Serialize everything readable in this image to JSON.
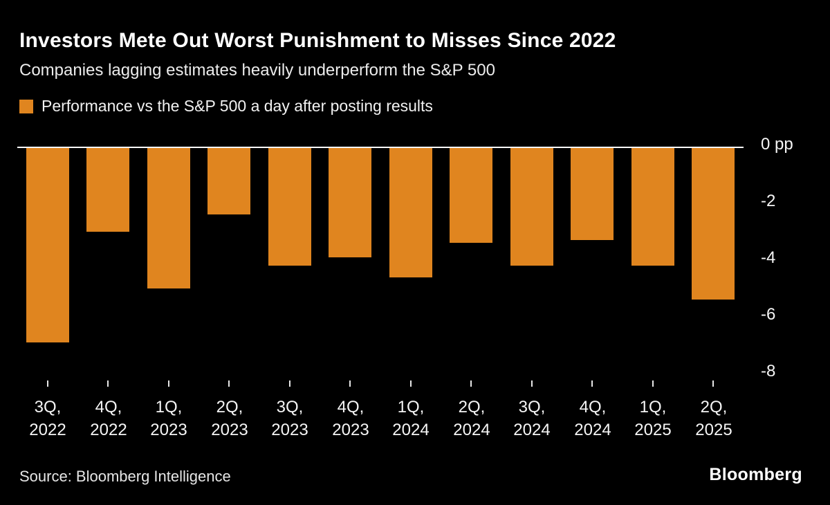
{
  "title": "Investors Mete Out Worst Punishment to Misses Since 2022",
  "subtitle": "Companies lagging estimates heavily underperform the S&P 500",
  "legend": {
    "label": "Performance vs the S&P 500 a day after posting results",
    "color": "#E0851F"
  },
  "source": "Source: Bloomberg Intelligence",
  "logo": "Bloomberg",
  "chart_data": {
    "type": "bar",
    "title": "Investors Mete Out Worst Punishment to Misses Since 2022",
    "subtitle": "Companies lagging estimates heavily underperform the S&P 500",
    "series_name": "Performance vs the S&P 500 a day after posting results",
    "categories": [
      "3Q, 2022",
      "4Q, 2022",
      "1Q, 2023",
      "2Q, 2023",
      "3Q, 2023",
      "4Q, 2023",
      "1Q, 2024",
      "2Q, 2024",
      "3Q, 2024",
      "4Q, 2024",
      "1Q, 2025",
      "2Q, 2025"
    ],
    "values": [
      -6.9,
      -3.0,
      -5.0,
      -2.4,
      -4.2,
      -3.9,
      -4.6,
      -3.4,
      -4.2,
      -3.3,
      -4.2,
      -5.4
    ],
    "unit": "pp",
    "xlabel": "",
    "ylabel": "",
    "ylim": [
      -8,
      0
    ],
    "y_ticks": [
      {
        "label": "0 pp",
        "value": 0
      },
      {
        "label": "-2",
        "value": -2
      },
      {
        "label": "-4",
        "value": -4
      },
      {
        "label": "-6",
        "value": -6
      },
      {
        "label": "-8",
        "value": -8
      }
    ],
    "bar_color": "#E0851F",
    "grid": false,
    "legend_position": "top-left",
    "background": "#000000"
  }
}
